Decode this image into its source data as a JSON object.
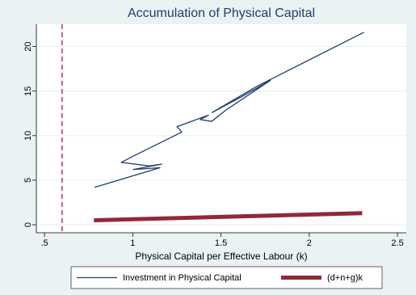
{
  "chart_data": {
    "type": "line",
    "title": "Accumulation of Physical Capital",
    "x_label": "Physical Capital per Effective Labour (k)",
    "xlim": [
      0.454,
      2.55
    ],
    "xticks": [
      {
        "value": 0.5,
        "label": ".5"
      },
      1,
      1.5,
      2,
      2.5
    ],
    "ylim": [
      -0.9,
      22.5
    ],
    "yticks": [
      0,
      5,
      10,
      15,
      20
    ],
    "grid": true,
    "reference_line": {
      "x": 0.6,
      "color": "#c0324a",
      "style": "dashed"
    },
    "legend_position": "bottom",
    "series": [
      {
        "name": "Investment in Physical Capital",
        "color": "#1f3f6e",
        "width": 1.3,
        "x": [
          0.784,
          1.154,
          1.003,
          1.164,
          1.095,
          0.935,
          1.003,
          1.278,
          1.251,
          1.429,
          1.383,
          1.447,
          1.53,
          1.78,
          1.62,
          1.45,
          1.7,
          2.31
        ],
        "values": [
          4.2,
          6.4,
          6.2,
          6.8,
          6.6,
          7.0,
          7.7,
          10.4,
          11.0,
          12.3,
          11.8,
          11.6,
          12.9,
          16.2,
          14.4,
          12.6,
          15.5,
          21.6
        ]
      },
      {
        "name": "(d+n+g)k",
        "color": "#93273a",
        "width": 5,
        "x": [
          0.78,
          2.3
        ],
        "values": [
          0.5,
          1.3
        ]
      }
    ]
  }
}
